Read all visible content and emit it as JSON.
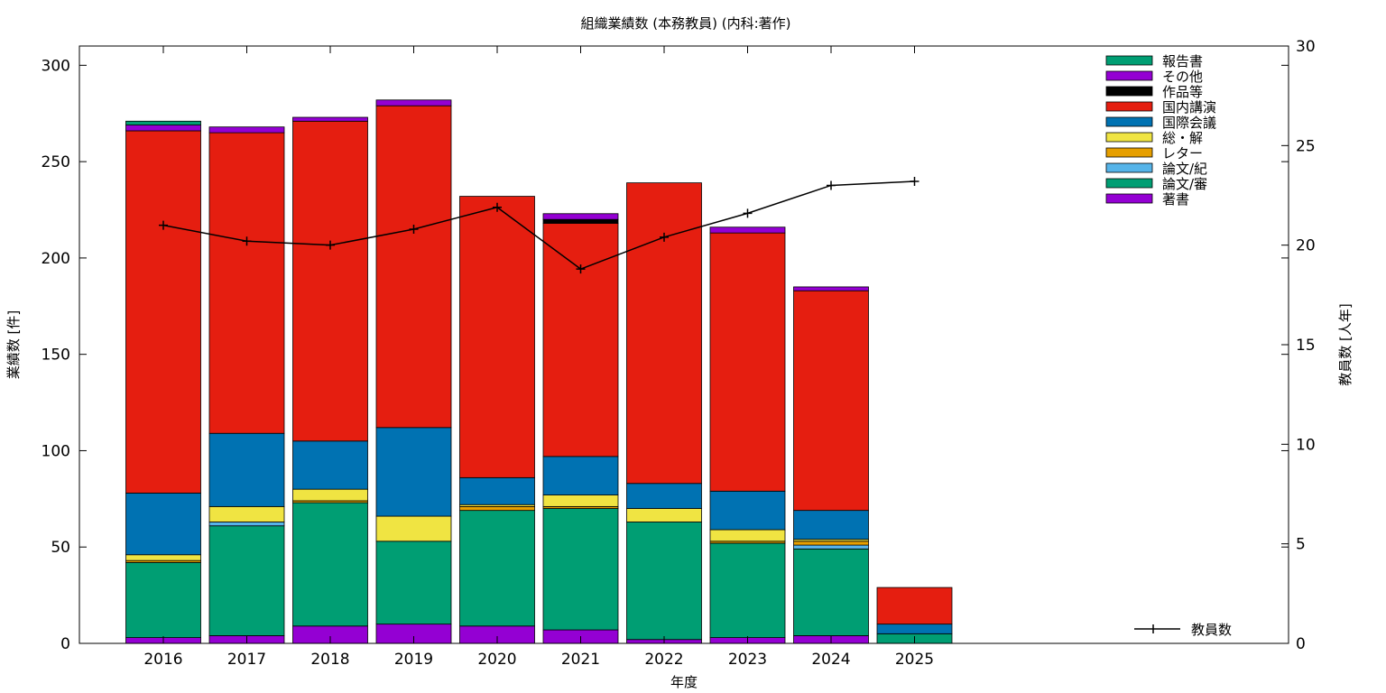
{
  "chart_data": {
    "type": "bar",
    "stacked": true,
    "title": "組織業績数 (本務教員) (内科:著作)",
    "xlabel": "年度",
    "ylabel": "業績数 [件]",
    "y2label": "教員数 [人年]",
    "ylim": [
      0,
      310
    ],
    "y2lim": [
      0,
      30
    ],
    "yticks": [
      0,
      50,
      100,
      150,
      200,
      250,
      300
    ],
    "y2ticks": [
      0,
      5,
      10,
      15,
      20,
      25,
      30
    ],
    "grid": false,
    "legend_placement": "top-right",
    "categories": [
      "2016",
      "2017",
      "2018",
      "2019",
      "2020",
      "2021",
      "2022",
      "2023",
      "2024",
      "2025"
    ],
    "series": [
      {
        "name": "著書",
        "color": "#9400d3",
        "values": [
          3,
          4,
          9,
          10,
          9,
          7,
          2,
          3,
          4,
          0
        ]
      },
      {
        "name": "論文/審",
        "color": "#009e73",
        "values": [
          39,
          57,
          64,
          43,
          60,
          63,
          61,
          49,
          45,
          5
        ]
      },
      {
        "name": "論文/紀",
        "color": "#56b4e9",
        "values": [
          0,
          2,
          0,
          0,
          0,
          0,
          0,
          0,
          2,
          0
        ]
      },
      {
        "name": "レター",
        "color": "#e69f00",
        "values": [
          1,
          0,
          1,
          0,
          2,
          1,
          0,
          1,
          2,
          0
        ]
      },
      {
        "name": "総・解",
        "color": "#f0e442",
        "values": [
          3,
          8,
          6,
          13,
          1,
          6,
          7,
          6,
          1,
          0
        ]
      },
      {
        "name": "国際会議",
        "color": "#0072b2",
        "values": [
          32,
          38,
          25,
          46,
          14,
          20,
          13,
          20,
          15,
          5
        ]
      },
      {
        "name": "国内講演",
        "color": "#e51e10",
        "values": [
          188,
          156,
          166,
          167,
          146,
          121,
          156,
          134,
          114,
          19
        ]
      },
      {
        "name": "作品等",
        "color": "#000000",
        "values": [
          0,
          0,
          0,
          0,
          0,
          2,
          0,
          0,
          0,
          0
        ]
      },
      {
        "name": "その他",
        "color": "#9400d3",
        "values": [
          3,
          3,
          2,
          3,
          0,
          3,
          0,
          3,
          2,
          0
        ]
      },
      {
        "name": "報告書",
        "color": "#009e73",
        "values": [
          2,
          0,
          0,
          0,
          0,
          0,
          0,
          0,
          0,
          0
        ]
      }
    ],
    "line_series": {
      "name": "教員数",
      "color": "#000000",
      "axis": "y2",
      "values": [
        21.0,
        20.2,
        20.0,
        20.8,
        21.9,
        18.8,
        20.4,
        21.6,
        23.0,
        23.2
      ]
    }
  }
}
